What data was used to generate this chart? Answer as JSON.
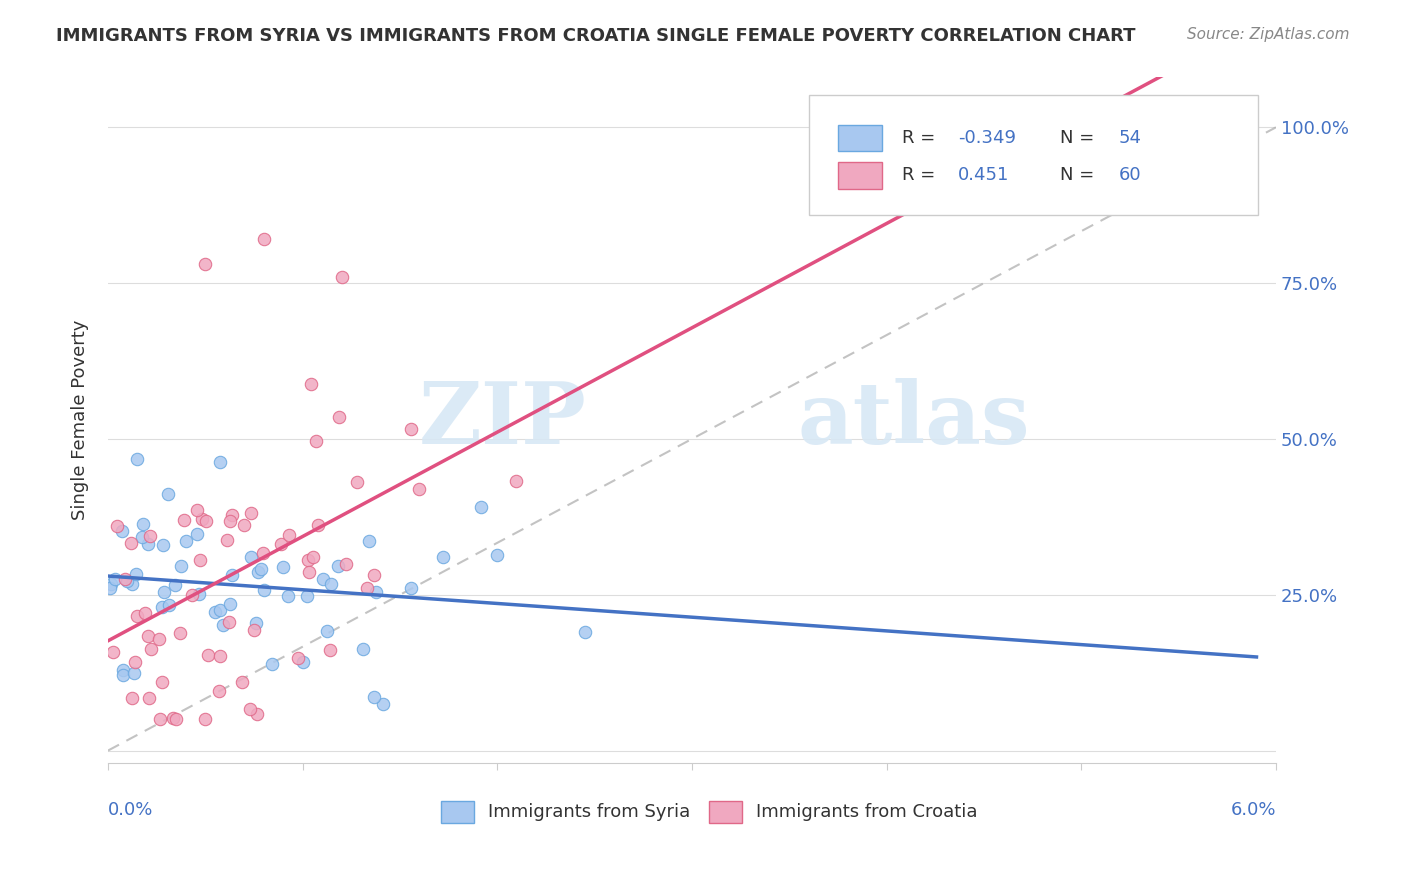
{
  "title": "IMMIGRANTS FROM SYRIA VS IMMIGRANTS FROM CROATIA SINGLE FEMALE POVERTY CORRELATION CHART",
  "source": "Source: ZipAtlas.com",
  "ylabel": "Single Female Poverty",
  "yticks": [
    0.0,
    0.25,
    0.5,
    0.75,
    1.0
  ],
  "ytick_labels": [
    "",
    "25.0%",
    "50.0%",
    "75.0%",
    "100.0%"
  ],
  "xlim": [
    0.0,
    0.06
  ],
  "ylim": [
    -0.02,
    1.08
  ],
  "syria_color": "#a8c8f0",
  "syria_edge_color": "#6aa8e0",
  "croatia_color": "#f0a8c0",
  "croatia_edge_color": "#e06888",
  "syria_R": -0.349,
  "syria_N": 54,
  "croatia_R": 0.451,
  "croatia_N": 60,
  "syria_line_color": "#4472c4",
  "croatia_line_color": "#e05080",
  "ref_line_color": "#aaaaaa",
  "legend_R_color": "#4472c4",
  "watermark_zip": "ZIP",
  "watermark_atlas": "atlas"
}
